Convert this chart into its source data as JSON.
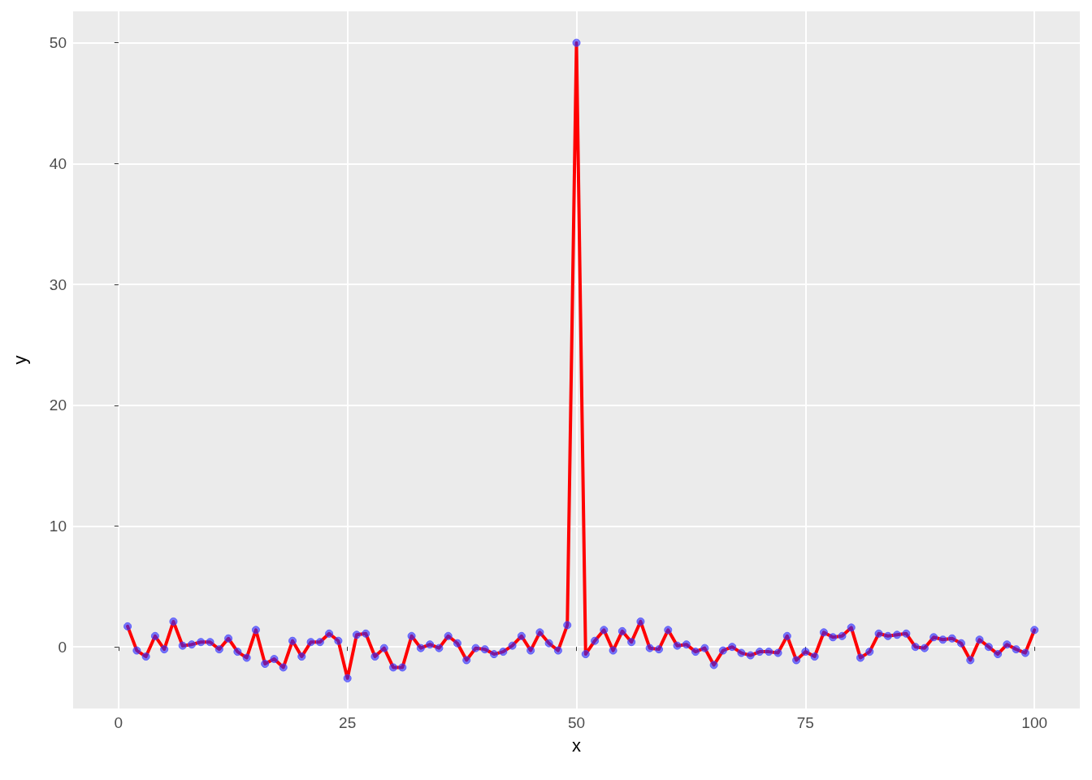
{
  "chart_data": {
    "type": "line",
    "xlabel": "x",
    "ylabel": "y",
    "x": [
      1,
      2,
      3,
      4,
      5,
      6,
      7,
      8,
      9,
      10,
      11,
      12,
      13,
      14,
      15,
      16,
      17,
      18,
      19,
      20,
      21,
      22,
      23,
      24,
      25,
      26,
      27,
      28,
      29,
      30,
      31,
      32,
      33,
      34,
      35,
      36,
      37,
      38,
      39,
      40,
      41,
      42,
      43,
      44,
      45,
      46,
      47,
      48,
      49,
      50,
      51,
      52,
      53,
      54,
      55,
      56,
      57,
      58,
      59,
      60,
      61,
      62,
      63,
      64,
      65,
      66,
      67,
      68,
      69,
      70,
      71,
      72,
      73,
      74,
      75,
      76,
      77,
      78,
      79,
      80,
      81,
      82,
      83,
      84,
      85,
      86,
      87,
      88,
      89,
      90,
      91,
      92,
      93,
      94,
      95,
      96,
      97,
      98,
      99,
      100
    ],
    "series": [
      {
        "color": "#ff0000",
        "values": [
          1.7,
          -0.3,
          -0.8,
          0.9,
          -0.2,
          2.1,
          0.1,
          0.2,
          0.4,
          0.4,
          -0.2,
          0.7,
          -0.4,
          -0.9,
          1.4,
          -1.4,
          -1.0,
          -1.7,
          0.5,
          -0.8,
          0.4,
          0.4,
          1.1,
          0.5,
          -2.6,
          1.0,
          1.1,
          -0.8,
          -0.1,
          -1.7,
          -1.7,
          0.9,
          -0.1,
          0.2,
          -0.1,
          0.9,
          0.3,
          -1.1,
          -0.1,
          -0.2,
          -0.6,
          -0.4,
          0.1,
          0.9,
          -0.3,
          1.2,
          0.3,
          -0.3,
          1.8,
          50,
          -0.6,
          0.5,
          1.4,
          -0.3,
          1.3,
          0.4,
          2.1,
          -0.1,
          -0.2,
          1.4,
          0.1,
          0.2,
          -0.4,
          -0.1,
          -1.5,
          -0.3,
          0.0,
          -0.5,
          -0.7,
          -0.4,
          -0.4,
          -0.5,
          0.9,
          -1.1,
          -0.4,
          -0.8,
          1.2,
          0.8,
          0.9,
          1.6,
          -0.9,
          -0.4,
          1.1,
          0.9,
          1.0,
          1.1,
          0.0,
          -0.1,
          0.8,
          0.6,
          0.7,
          0.3,
          -1.1,
          0.6,
          0.0,
          -0.6,
          0.2,
          -0.2,
          -0.5,
          1.4
        ]
      }
    ],
    "xlim": [
      -4.95,
      104.95
    ],
    "xticks": [
      0,
      25,
      50,
      75,
      100
    ],
    "ylim": [
      -5.1,
      52.6
    ],
    "yticks": [
      0,
      10,
      20,
      30,
      40,
      50
    ],
    "grid": true,
    "marker": "circle",
    "line_style": "solid"
  }
}
